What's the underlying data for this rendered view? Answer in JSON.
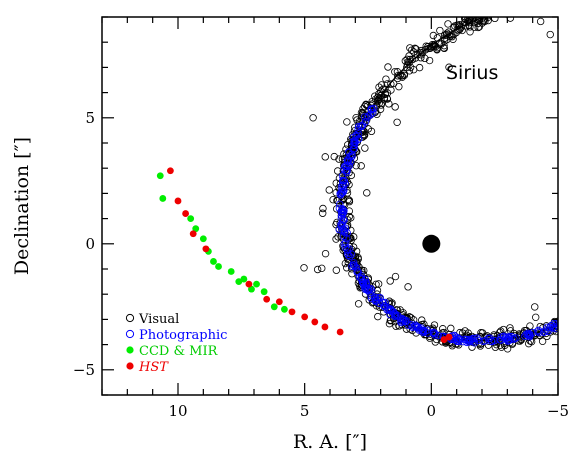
{
  "chart_data": {
    "type": "scatter",
    "title": "Sirius",
    "xlabel": "R. A. [″]",
    "ylabel": "Declination [″]",
    "xlim": [
      13,
      -5
    ],
    "ylim": [
      -6,
      9
    ],
    "xticks": [
      10,
      5,
      0,
      -5
    ],
    "yticks": [
      -5,
      0,
      5
    ],
    "x_tick_labels": [
      "10",
      "5",
      "0",
      "−5"
    ],
    "y_tick_labels": [
      "−5",
      "0",
      "5"
    ],
    "grid": false,
    "legend_position": "bottom-left",
    "primary": {
      "x": 0,
      "y": 0,
      "color": "#000000"
    },
    "orbit": {
      "a": 7.5,
      "e": 0.59,
      "apoapsis_angle_deg": 140,
      "color": "#000000"
    },
    "series": [
      {
        "name": "Visual",
        "marker": "open-circle",
        "color": "#000000",
        "arc_from_deg": 70,
        "arc_to_deg": 330,
        "count": 900,
        "scatter": 0.35,
        "outliers": 60
      },
      {
        "name": "Photographic",
        "marker": "open-circle",
        "color": "#0000ff",
        "arc_from_deg": 92,
        "arc_to_deg": 250,
        "count": 320,
        "scatter": 0.12,
        "outliers": 0
      },
      {
        "name": "CCD & MIR",
        "marker": "filled-circle",
        "color": "#00ee00",
        "points": [
          [
            10.7,
            2.7
          ],
          [
            10.6,
            1.8
          ],
          [
            9.5,
            1.0
          ],
          [
            9.3,
            0.6
          ],
          [
            9.0,
            0.2
          ],
          [
            8.8,
            -0.3
          ],
          [
            8.6,
            -0.7
          ],
          [
            8.4,
            -0.9
          ],
          [
            7.9,
            -1.1
          ],
          [
            7.4,
            -1.4
          ],
          [
            6.9,
            -1.6
          ],
          [
            6.6,
            -1.9
          ],
          [
            7.6,
            -1.5
          ],
          [
            7.1,
            -1.8
          ],
          [
            5.8,
            -2.6
          ],
          [
            6.2,
            -2.5
          ]
        ]
      },
      {
        "name": "HST",
        "marker": "filled-circle",
        "color": "#ee0000",
        "points": [
          [
            10.3,
            2.9
          ],
          [
            10.0,
            1.7
          ],
          [
            9.7,
            1.2
          ],
          [
            9.4,
            0.4
          ],
          [
            8.9,
            -0.2
          ],
          [
            7.2,
            -1.6
          ],
          [
            6.5,
            -2.2
          ],
          [
            6.0,
            -2.3
          ],
          [
            5.5,
            -2.7
          ],
          [
            5.0,
            -2.9
          ],
          [
            4.6,
            -3.1
          ],
          [
            4.2,
            -3.3
          ],
          [
            3.6,
            -3.5
          ],
          [
            -0.5,
            -3.8
          ],
          [
            -0.7,
            -3.7
          ]
        ]
      }
    ]
  }
}
